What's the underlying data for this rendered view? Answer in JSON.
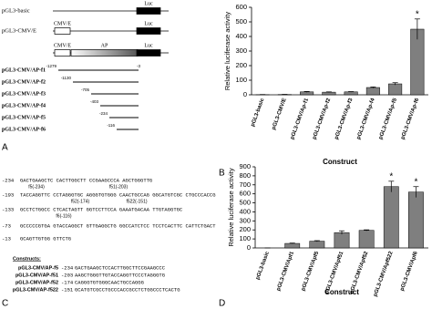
{
  "panel_a": {
    "label": "A",
    "maps": [
      {
        "name": "pGL3-basic",
        "parts": [
          "Luc"
        ]
      },
      {
        "name": "pGL3-CMV/E",
        "parts": [
          "CMV/E",
          "Luc"
        ]
      },
      {
        "parts": [
          "CMV/E",
          "AP",
          "Luc"
        ]
      }
    ],
    "deletions": [
      {
        "name": "pGL3-CMV/AP-f1",
        "start": "-1279",
        "end": "-3"
      },
      {
        "name": "pGL3-CMV/AP-f2",
        "start": "-1130"
      },
      {
        "name": "pGL3-CMV/AP-f3",
        "start": "-705"
      },
      {
        "name": "pGL3-CMV/AP-f4",
        "start": "-403"
      },
      {
        "name": "pGL3-CMV/AP-f5",
        "start": "-234"
      },
      {
        "name": "pGL3-CMV/AP-f6",
        "start": "-116"
      }
    ]
  },
  "panel_c": {
    "label": "C",
    "sequence": [
      {
        "pos": "-234",
        "seq": "GACTGAAGCTC CACTTGGCTT CCGAAGCCCA AGCTGGGTTG"
      },
      {
        "pos": "-193",
        "seq": "TACCAGGTTC CCTAGGGTGC AGGGTGTGGG CAACTGCCAG GGCATGTCGC CTGCCCACCG"
      },
      {
        "pos": "-133",
        "seq": "GCCTCTGGCC CTCACTAGTT GGTCCTTCCA GAAATGACAA TTGTAGGTGC"
      },
      {
        "pos": "-73",
        "seq": "GCCCCCGTGA GTACCAGGCT GTTGAGGCTG GGCCATCTCC TCCTCACTTC CATTCTGACT"
      },
      {
        "pos": "-13",
        "seq": "GCAGTTGTGG GTTCTG"
      }
    ],
    "markers": [
      "f5(-234)",
      "f51(-203)",
      "f52(-174)",
      "f522(-151)",
      "f6(-116)"
    ],
    "constructs_title": "Constructs:",
    "constructs": [
      {
        "name": "pGL3-CMV/AP-f5",
        "pos": "-234",
        "seq": "GACTGAAGCTCCACTTGGCTTCCGAAGCCC"
      },
      {
        "name": "pGL3-CMV/AP-f51",
        "pos": "-203",
        "seq": "AAGCTGGGTTGTACCAGGTTCCCTAGGGTG"
      },
      {
        "name": "pGL3-CMV/AP-f52",
        "pos": "-174",
        "seq": "CAGGGTGTGGGCAACTGCCAGGG"
      },
      {
        "name": "pGL3-CMV/AP-f522",
        "pos": "-151",
        "seq": "GCATGTCGCCTGCCCACCGCCTCTGGCCCTCACTG"
      }
    ]
  },
  "chart_data": [
    {
      "type": "bar",
      "panel": "B",
      "xlabel": "Construct",
      "ylabel": "Relative luciferase activity",
      "categories": [
        "pGL3-basic",
        "pGL3-CMV/E",
        "pGL3-CMV/Ap-f1",
        "pGL3-CMV/Ap-f2",
        "pGL3-CMV/Ap-f3",
        "pGL3-CMV/Ap-f4",
        "pGL3-CMV/Ap-f5",
        "pGL3-CMV/Ap-f6"
      ],
      "values": [
        1,
        2,
        20,
        18,
        20,
        50,
        75,
        450
      ],
      "errors": [
        1,
        1,
        3,
        2,
        2,
        4,
        8,
        70
      ],
      "color": "#7f7f7f",
      "ylim": [
        0,
        600
      ],
      "yticks": [
        0,
        100,
        200,
        300,
        400,
        500,
        600
      ],
      "annotations": [
        {
          "text": "*",
          "category": "pGL3-CMV/Ap-f6"
        }
      ]
    },
    {
      "type": "bar",
      "panel": "D",
      "xlabel": "Construct",
      "ylabel": "Relative luciferase activity",
      "categories": [
        "pGL3-basic",
        "pGL3-CMV/Apf1",
        "pGL3-CMV/Apf5",
        "pGL3-CMV/Apf51",
        "pGL3-CMV/Apf52",
        "pGL3-CMV/Apf522",
        "pGL3-CMV/Apf6"
      ],
      "values": [
        0,
        50,
        75,
        170,
        195,
        680,
        620
      ],
      "errors": [
        0,
        4,
        6,
        20,
        6,
        60,
        60
      ],
      "color": "#7f7f7f",
      "ylim": [
        0,
        900
      ],
      "yticks": [
        0,
        100,
        200,
        300,
        400,
        500,
        600,
        700,
        800,
        900
      ],
      "annotations": [
        {
          "text": "*",
          "category": "pGL3-CMV/Apf522"
        },
        {
          "text": "*",
          "category": "pGL3-CMV/Apf6"
        }
      ]
    }
  ]
}
